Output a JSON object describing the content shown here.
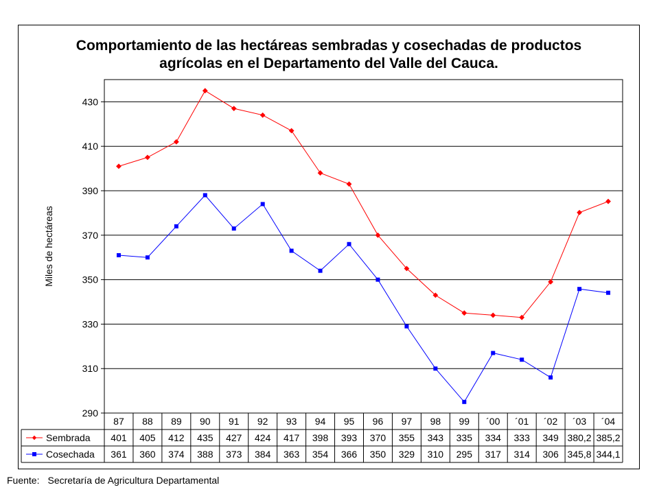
{
  "chart_data": {
    "type": "line",
    "title": "Comportamiento de las hectáreas sembradas y cosechadas de productos agrícolas en el Departamento del Valle del Cauca.",
    "title_lines": [
      "Comportamiento de las hectáreas sembradas y cosechadas de productos",
      "agrícolas en el Departamento del Valle del Cauca."
    ],
    "xlabel": "",
    "ylabel": "Miles de hectáreas",
    "ylim": [
      290,
      440
    ],
    "yticks": [
      290,
      310,
      330,
      350,
      370,
      390,
      410,
      430
    ],
    "grid": true,
    "legend": "data-table",
    "categories": [
      "87",
      "88",
      "89",
      "90",
      "91",
      "92",
      "93",
      "94",
      "95",
      "96",
      "97",
      "98",
      "99",
      "´00",
      "´01",
      "´02",
      "´03",
      "´04"
    ],
    "series": [
      {
        "name": "Sembrada",
        "color": "#ff0000",
        "marker": "diamond",
        "values": [
          401,
          405,
          412,
          435,
          427,
          424,
          417,
          398,
          393,
          370,
          355,
          343,
          335,
          334,
          333,
          349,
          380.2,
          385.2
        ],
        "table_labels": [
          "401",
          "405",
          "412",
          "435",
          "427",
          "424",
          "417",
          "398",
          "393",
          "370",
          "355",
          "343",
          "335",
          "334",
          "333",
          "349",
          "380,2",
          "385,2"
        ]
      },
      {
        "name": "Cosechada",
        "color": "#0000ff",
        "marker": "square",
        "values": [
          361,
          360,
          374,
          388,
          373,
          384,
          363,
          354,
          366,
          350,
          329,
          310,
          295,
          317,
          314,
          306,
          345.8,
          344.1
        ],
        "table_labels": [
          "361",
          "360",
          "374",
          "388",
          "373",
          "384",
          "363",
          "354",
          "366",
          "350",
          "329",
          "310",
          "295",
          "317",
          "314",
          "306",
          "345,8",
          "344,1"
        ]
      }
    ]
  },
  "source": {
    "label": "Fuente:",
    "text": "Secretaría de Agricultura Departamental"
  }
}
